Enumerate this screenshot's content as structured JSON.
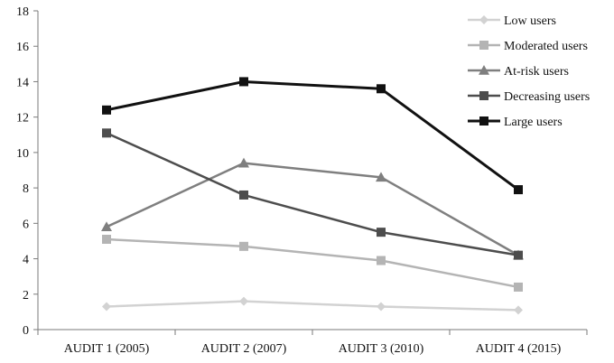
{
  "chart_data": {
    "type": "line",
    "title": "",
    "xlabel": "",
    "ylabel": "",
    "categories": [
      "AUDIT 1 (2005)",
      "AUDIT 2 (2007)",
      "AUDIT 3 (2010)",
      "AUDIT 4 (2015)"
    ],
    "ylim": [
      0,
      18
    ],
    "yticks": [
      0,
      2,
      4,
      6,
      8,
      10,
      12,
      14,
      16,
      18
    ],
    "grid": false,
    "legend_position": "top-right",
    "series": [
      {
        "name": "Low users",
        "values": [
          1.3,
          1.6,
          1.3,
          1.1
        ],
        "color": "#d2d2d2",
        "marker": "diamond",
        "line_width": 2.5
      },
      {
        "name": "Moderated users",
        "values": [
          5.1,
          4.7,
          3.9,
          2.4
        ],
        "color": "#b4b4b4",
        "marker": "square",
        "line_width": 2.5
      },
      {
        "name": "At-risk users",
        "values": [
          5.8,
          9.4,
          8.6,
          4.2
        ],
        "color": "#7f7f7f",
        "marker": "triangle",
        "line_width": 2.5
      },
      {
        "name": "Decreasing users",
        "values": [
          11.1,
          7.6,
          5.5,
          4.2
        ],
        "color": "#4d4d4d",
        "marker": "square",
        "line_width": 2.5
      },
      {
        "name": "Large users",
        "values": [
          12.4,
          14.0,
          13.6,
          7.9
        ],
        "color": "#111111",
        "marker": "square",
        "line_width": 3
      }
    ]
  }
}
